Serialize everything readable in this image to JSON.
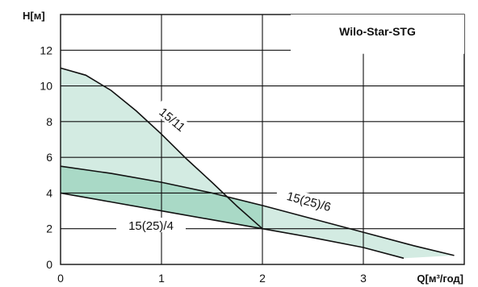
{
  "chart_data": {
    "type": "line",
    "title": "Wilo-Star-STG",
    "xlabel": "Q[м³/год]",
    "ylabel": "H[м]",
    "xlim": [
      0,
      4
    ],
    "ylim": [
      0,
      14
    ],
    "x_ticks": [
      "0",
      "1",
      "2",
      "3"
    ],
    "y_ticks": [
      "0",
      "2",
      "4",
      "6",
      "8",
      "10",
      "12"
    ],
    "grid": true,
    "series": [
      {
        "name": "15/11",
        "x": [
          0,
          0.25,
          0.5,
          0.75,
          1.0,
          1.25,
          1.5,
          1.75,
          2.0
        ],
        "y": [
          11.0,
          10.6,
          9.75,
          8.6,
          7.3,
          5.9,
          4.6,
          3.25,
          2.0
        ]
      },
      {
        "name": "15(25)/6",
        "x": [
          0,
          0.5,
          1.0,
          1.5,
          2.0,
          2.5,
          3.0,
          3.5,
          3.9
        ],
        "y": [
          5.5,
          5.1,
          4.6,
          4.0,
          3.3,
          2.55,
          1.8,
          1.05,
          0.5
        ]
      },
      {
        "name": "15(25)/4",
        "x": [
          0,
          0.5,
          1.0,
          1.5,
          2.0,
          2.5,
          3.0,
          3.4
        ],
        "y": [
          4.0,
          3.5,
          3.0,
          2.5,
          2.0,
          1.5,
          0.95,
          0.35
        ]
      }
    ],
    "colors": {
      "fill_light": "#d3ebe2",
      "fill_dark": "#a9d9c6",
      "line": "#111111"
    }
  }
}
